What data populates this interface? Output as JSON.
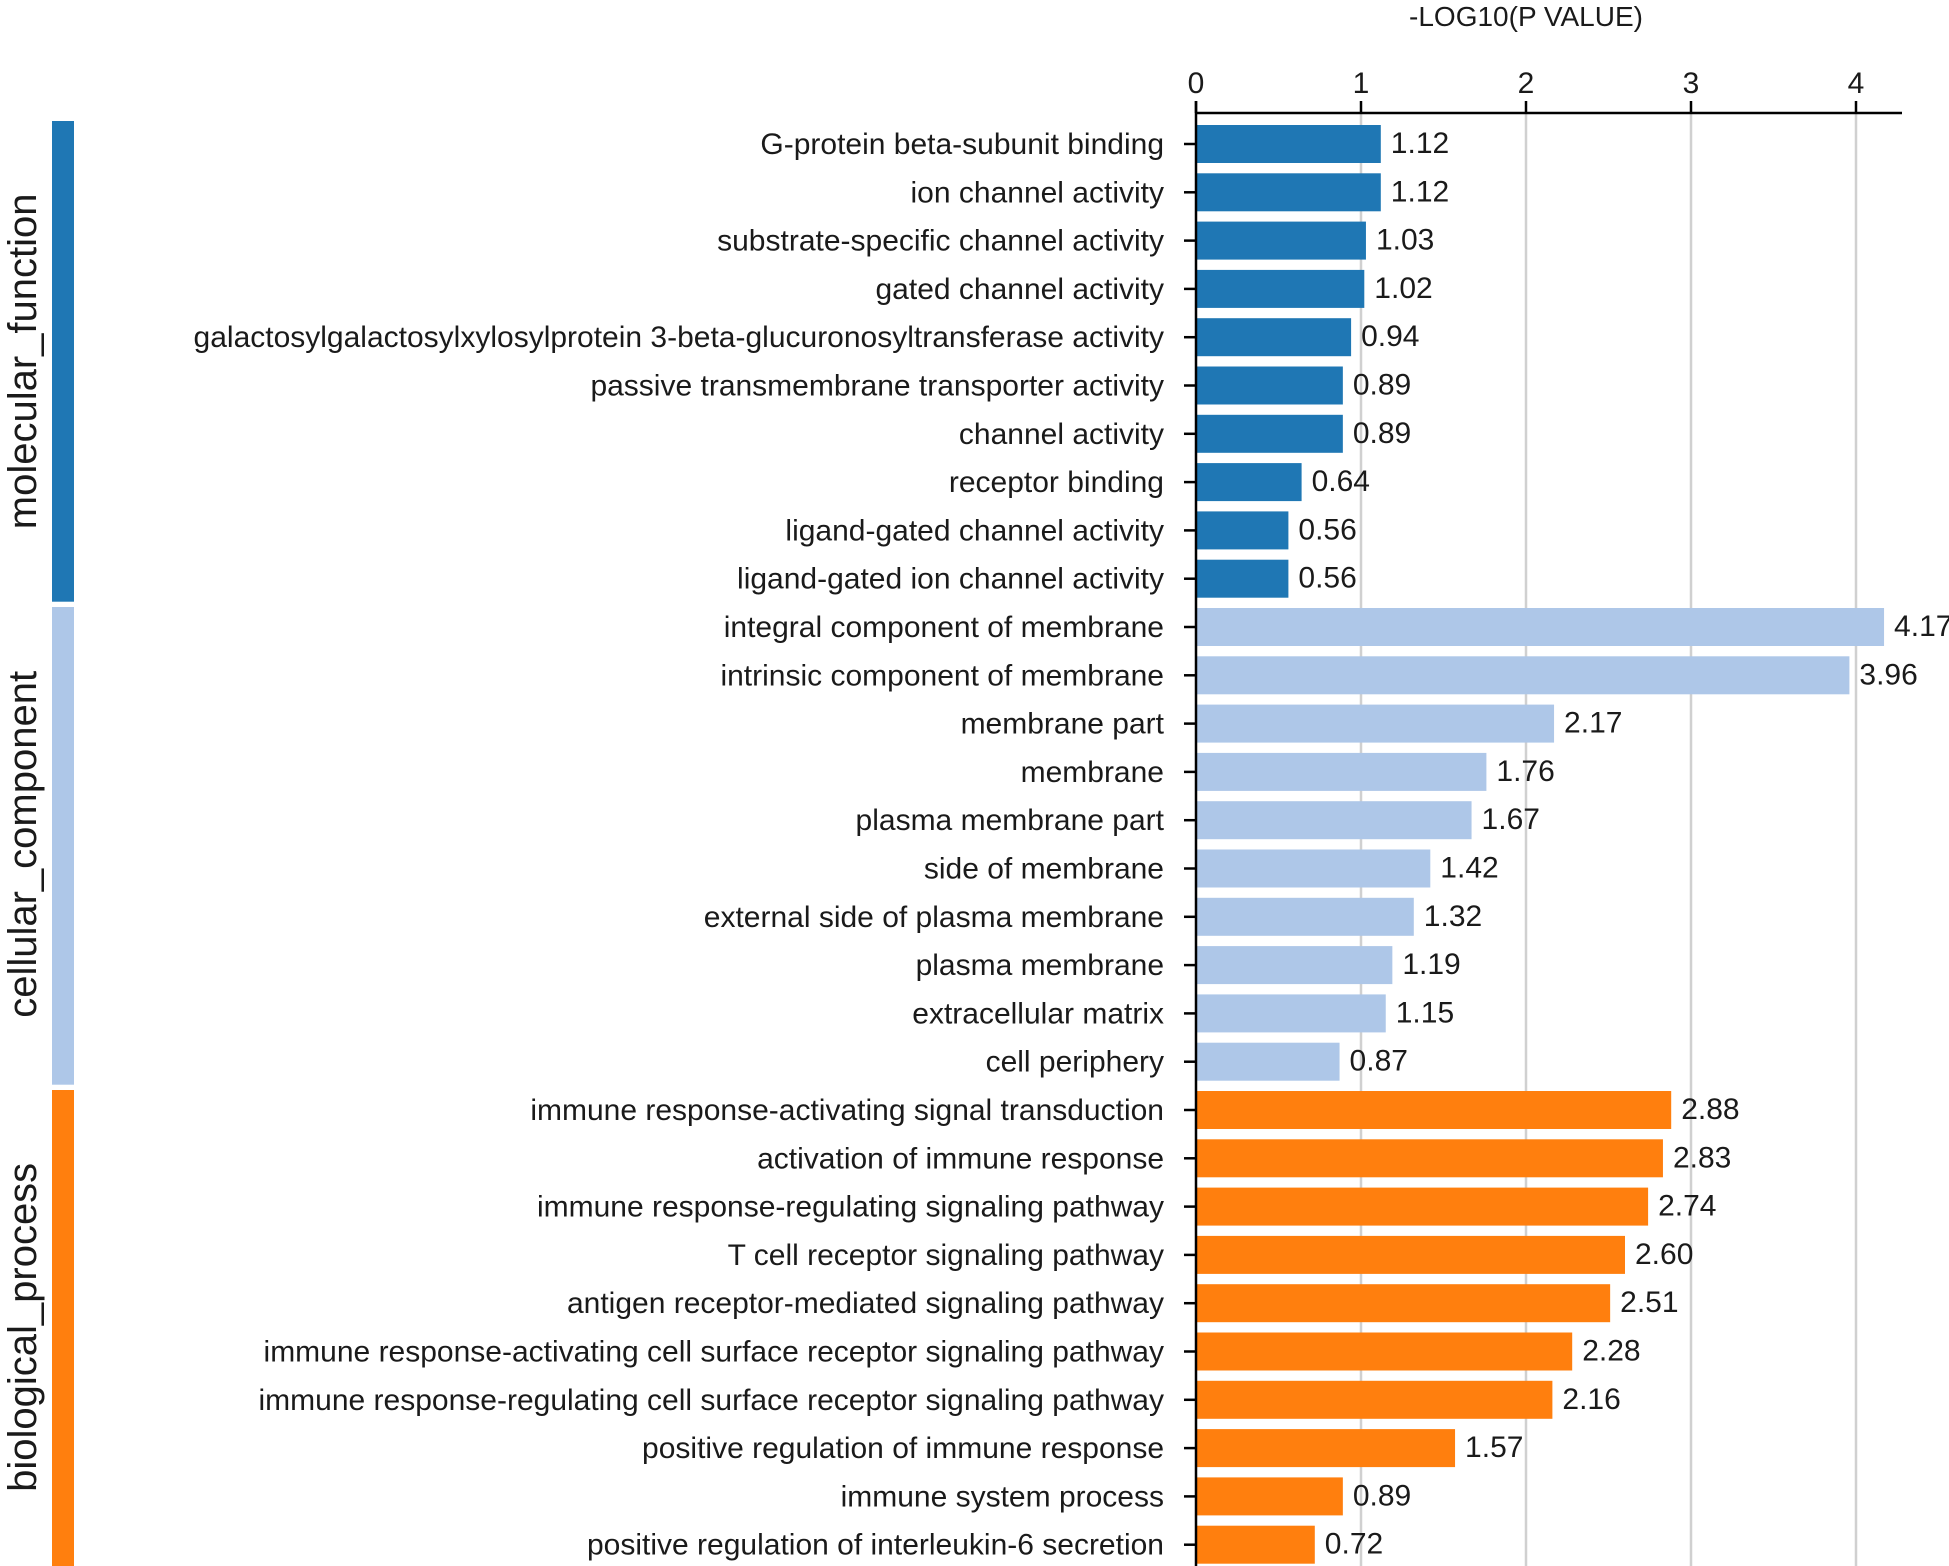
{
  "chart_data": {
    "type": "bar",
    "orientation": "horizontal",
    "title": "",
    "xlabel": "-LOG10(P VALUE)",
    "ylabel": "",
    "xlim": [
      0,
      4.25
    ],
    "xticks": [
      0,
      1,
      2,
      3,
      4
    ],
    "grid": true,
    "axis_position": "top",
    "groups": [
      {
        "name": "molecular_function",
        "color": "#1f77b4",
        "items": [
          {
            "term": "G-protein beta-subunit binding",
            "value": 1.12,
            "label": "1.12"
          },
          {
            "term": "ion channel activity",
            "value": 1.12,
            "label": "1.12"
          },
          {
            "term": "substrate-specific channel activity",
            "value": 1.03,
            "label": "1.03"
          },
          {
            "term": "gated channel activity",
            "value": 1.02,
            "label": "1.02"
          },
          {
            "term": "galactosylgalactosylxylosylprotein 3-beta-glucuronosyltransferase activity",
            "value": 0.94,
            "label": "0.94"
          },
          {
            "term": "passive transmembrane transporter activity",
            "value": 0.89,
            "label": "0.89"
          },
          {
            "term": "channel activity",
            "value": 0.89,
            "label": "0.89"
          },
          {
            "term": "receptor binding",
            "value": 0.64,
            "label": "0.64"
          },
          {
            "term": "ligand-gated channel activity",
            "value": 0.56,
            "label": "0.56"
          },
          {
            "term": "ligand-gated ion channel activity",
            "value": 0.56,
            "label": "0.56"
          }
        ]
      },
      {
        "name": "cellular_component",
        "color": "#aec7e8",
        "items": [
          {
            "term": "integral component of membrane",
            "value": 4.17,
            "label": "4.17"
          },
          {
            "term": "intrinsic component of membrane",
            "value": 3.96,
            "label": "3.96"
          },
          {
            "term": "membrane part",
            "value": 2.17,
            "label": "2.17"
          },
          {
            "term": "membrane",
            "value": 1.76,
            "label": "1.76"
          },
          {
            "term": "plasma membrane part",
            "value": 1.67,
            "label": "1.67"
          },
          {
            "term": "side of membrane",
            "value": 1.42,
            "label": "1.42"
          },
          {
            "term": "external side of plasma membrane",
            "value": 1.32,
            "label": "1.32"
          },
          {
            "term": "plasma membrane",
            "value": 1.19,
            "label": "1.19"
          },
          {
            "term": "extracellular matrix",
            "value": 1.15,
            "label": "1.15"
          },
          {
            "term": "cell periphery",
            "value": 0.87,
            "label": "0.87"
          }
        ]
      },
      {
        "name": "biological_process",
        "color": "#ff7f0e",
        "items": [
          {
            "term": "immune response-activating signal transduction",
            "value": 2.88,
            "label": "2.88"
          },
          {
            "term": "activation of immune response",
            "value": 2.83,
            "label": "2.83"
          },
          {
            "term": "immune response-regulating signaling pathway",
            "value": 2.74,
            "label": "2.74"
          },
          {
            "term": "T cell receptor signaling pathway",
            "value": 2.6,
            "label": "2.60"
          },
          {
            "term": "antigen receptor-mediated signaling pathway",
            "value": 2.51,
            "label": "2.51"
          },
          {
            "term": "immune response-activating cell surface receptor signaling pathway",
            "value": 2.28,
            "label": "2.28"
          },
          {
            "term": "immune response-regulating cell surface receptor signaling pathway",
            "value": 2.16,
            "label": "2.16"
          },
          {
            "term": "positive regulation of immune response",
            "value": 1.57,
            "label": "1.57"
          },
          {
            "term": "immune system process",
            "value": 0.89,
            "label": "0.89"
          },
          {
            "term": "positive regulation of interleukin-6 secretion",
            "value": 0.72,
            "label": "0.72"
          }
        ]
      }
    ]
  }
}
